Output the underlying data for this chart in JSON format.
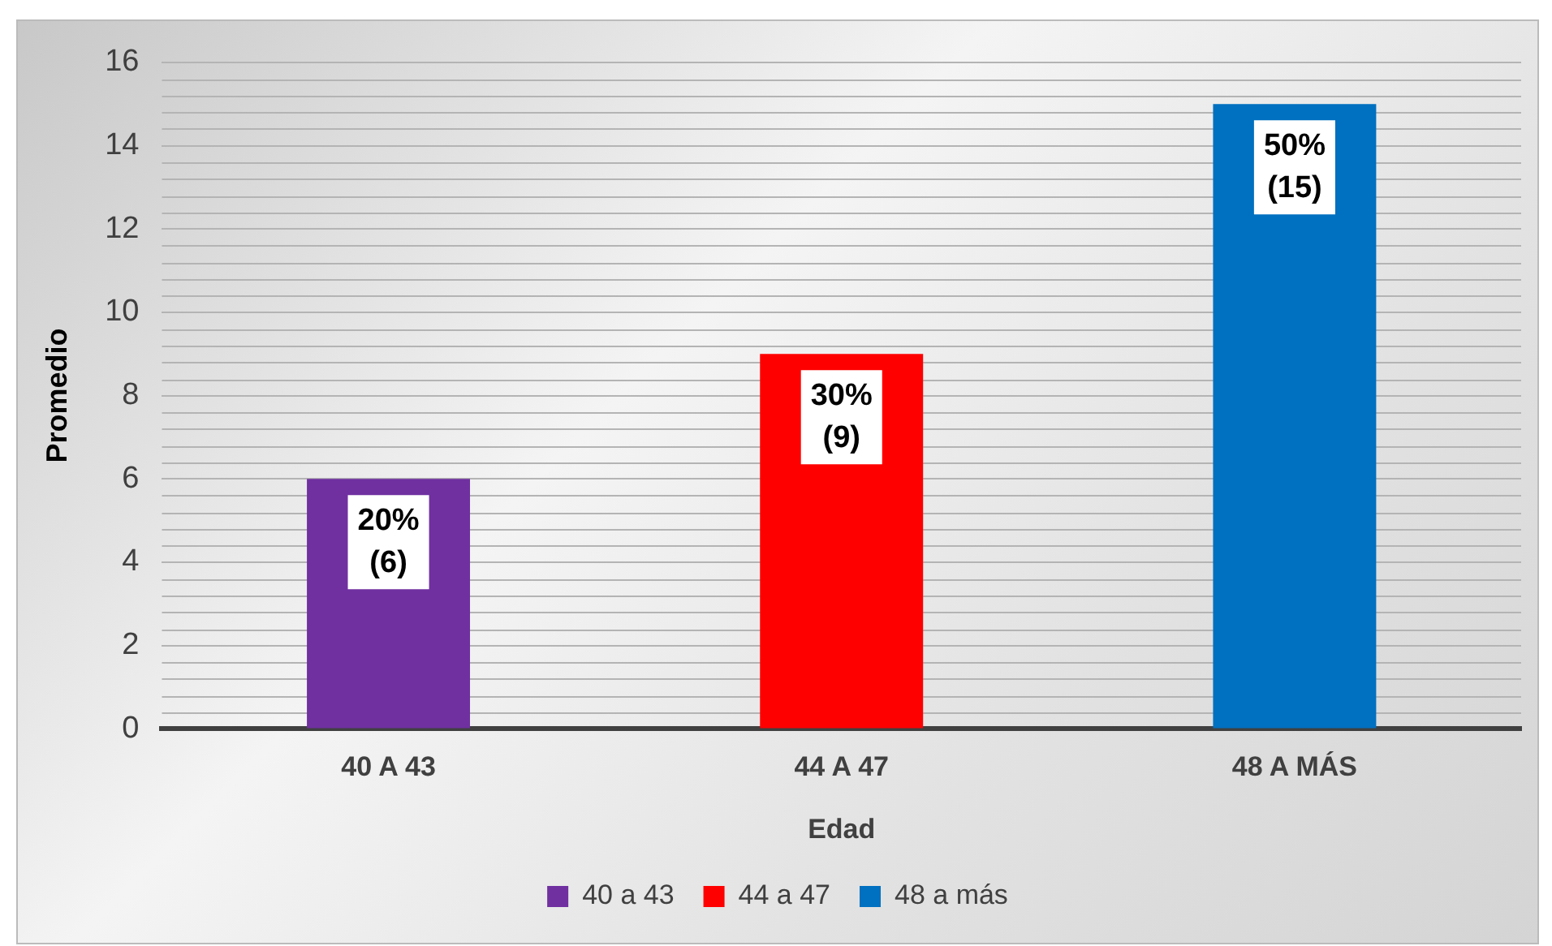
{
  "chart_data": {
    "type": "bar",
    "xlabel": "Edad",
    "ylabel": "Promedio",
    "categories": [
      "40 A 43",
      "44 A 47",
      "48 A MÁS"
    ],
    "series": [
      {
        "name": "40 a 43",
        "color": "#7030a0",
        "values": [
          6,
          null,
          null
        ],
        "value_labels": [
          "20%\n(6)",
          null,
          null
        ]
      },
      {
        "name": "44 a 47",
        "color": "#ff0000",
        "values": [
          null,
          9,
          null
        ],
        "value_labels": [
          null,
          "30%\n(9)",
          null
        ]
      },
      {
        "name": "48 a más",
        "color": "#0070c0",
        "values": [
          null,
          null,
          15
        ],
        "value_labels": [
          null,
          null,
          "50%\n(15)"
        ]
      }
    ],
    "ylim": [
      0,
      16
    ],
    "yticks": [
      0,
      2,
      4,
      6,
      8,
      10,
      12,
      14,
      16
    ],
    "grid": "y",
    "legend": "bottom"
  }
}
